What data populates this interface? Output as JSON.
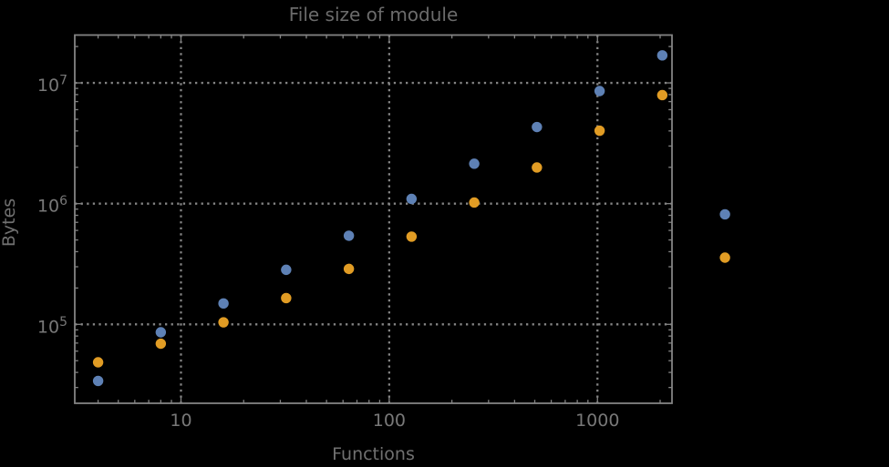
{
  "window": {
    "background_color": "#000000"
  },
  "style": {
    "frame_color": "#848484",
    "grid_color": "#848484",
    "tick_color": "#848484",
    "tick_label_color": "#787878",
    "title_color": "#6b6b6b",
    "axis_label_color": "#707070",
    "point_radius": 5.7,
    "point_colors": {
      "blue": "#5e81b5",
      "orange": "#e19c24"
    }
  },
  "chart_data": {
    "type": "scatter",
    "title": "File size of module",
    "xlabel": "Functions",
    "ylabel": "Bytes",
    "x_scale": "log",
    "y_scale": "log",
    "xlim": [
      3.09,
      2280
    ],
    "ylim": [
      22200,
      24900000
    ],
    "grid": true,
    "legend": "none",
    "x_gridlines": [
      10,
      100,
      1000
    ],
    "y_gridlines": [
      100000,
      1000000,
      10000000
    ],
    "x_tick_labels": [
      {
        "value": 10,
        "label": "10"
      },
      {
        "value": 100,
        "label": "100"
      },
      {
        "value": 1000,
        "label": "1000"
      }
    ],
    "y_tick_labels": [
      {
        "value": 100000,
        "base": "10",
        "exponent": "5"
      },
      {
        "value": 1000000,
        "base": "10",
        "exponent": "6"
      },
      {
        "value": 10000000,
        "base": "10",
        "exponent": "7"
      }
    ],
    "series": [
      {
        "name": "series-1-blue",
        "color": "#5e81b5",
        "points": [
          [
            4,
            34000
          ],
          [
            8,
            86000
          ],
          [
            16,
            149000
          ],
          [
            32,
            283000
          ],
          [
            64,
            542000
          ],
          [
            128,
            1094000
          ],
          [
            256,
            2140000
          ],
          [
            512,
            4310000
          ],
          [
            1024,
            8560000
          ],
          [
            2048,
            16900000
          ],
          [
            4096,
            815000
          ]
        ]
      },
      {
        "name": "series-2-orange",
        "color": "#e19c24",
        "points": [
          [
            4,
            48500
          ],
          [
            8,
            69200
          ],
          [
            16,
            104000
          ],
          [
            32,
            165000
          ],
          [
            64,
            288000
          ],
          [
            128,
            533000
          ],
          [
            256,
            1021000
          ],
          [
            512,
            1992000
          ],
          [
            1024,
            4020000
          ],
          [
            2048,
            7920000
          ],
          [
            4096,
            357000
          ]
        ]
      }
    ]
  }
}
